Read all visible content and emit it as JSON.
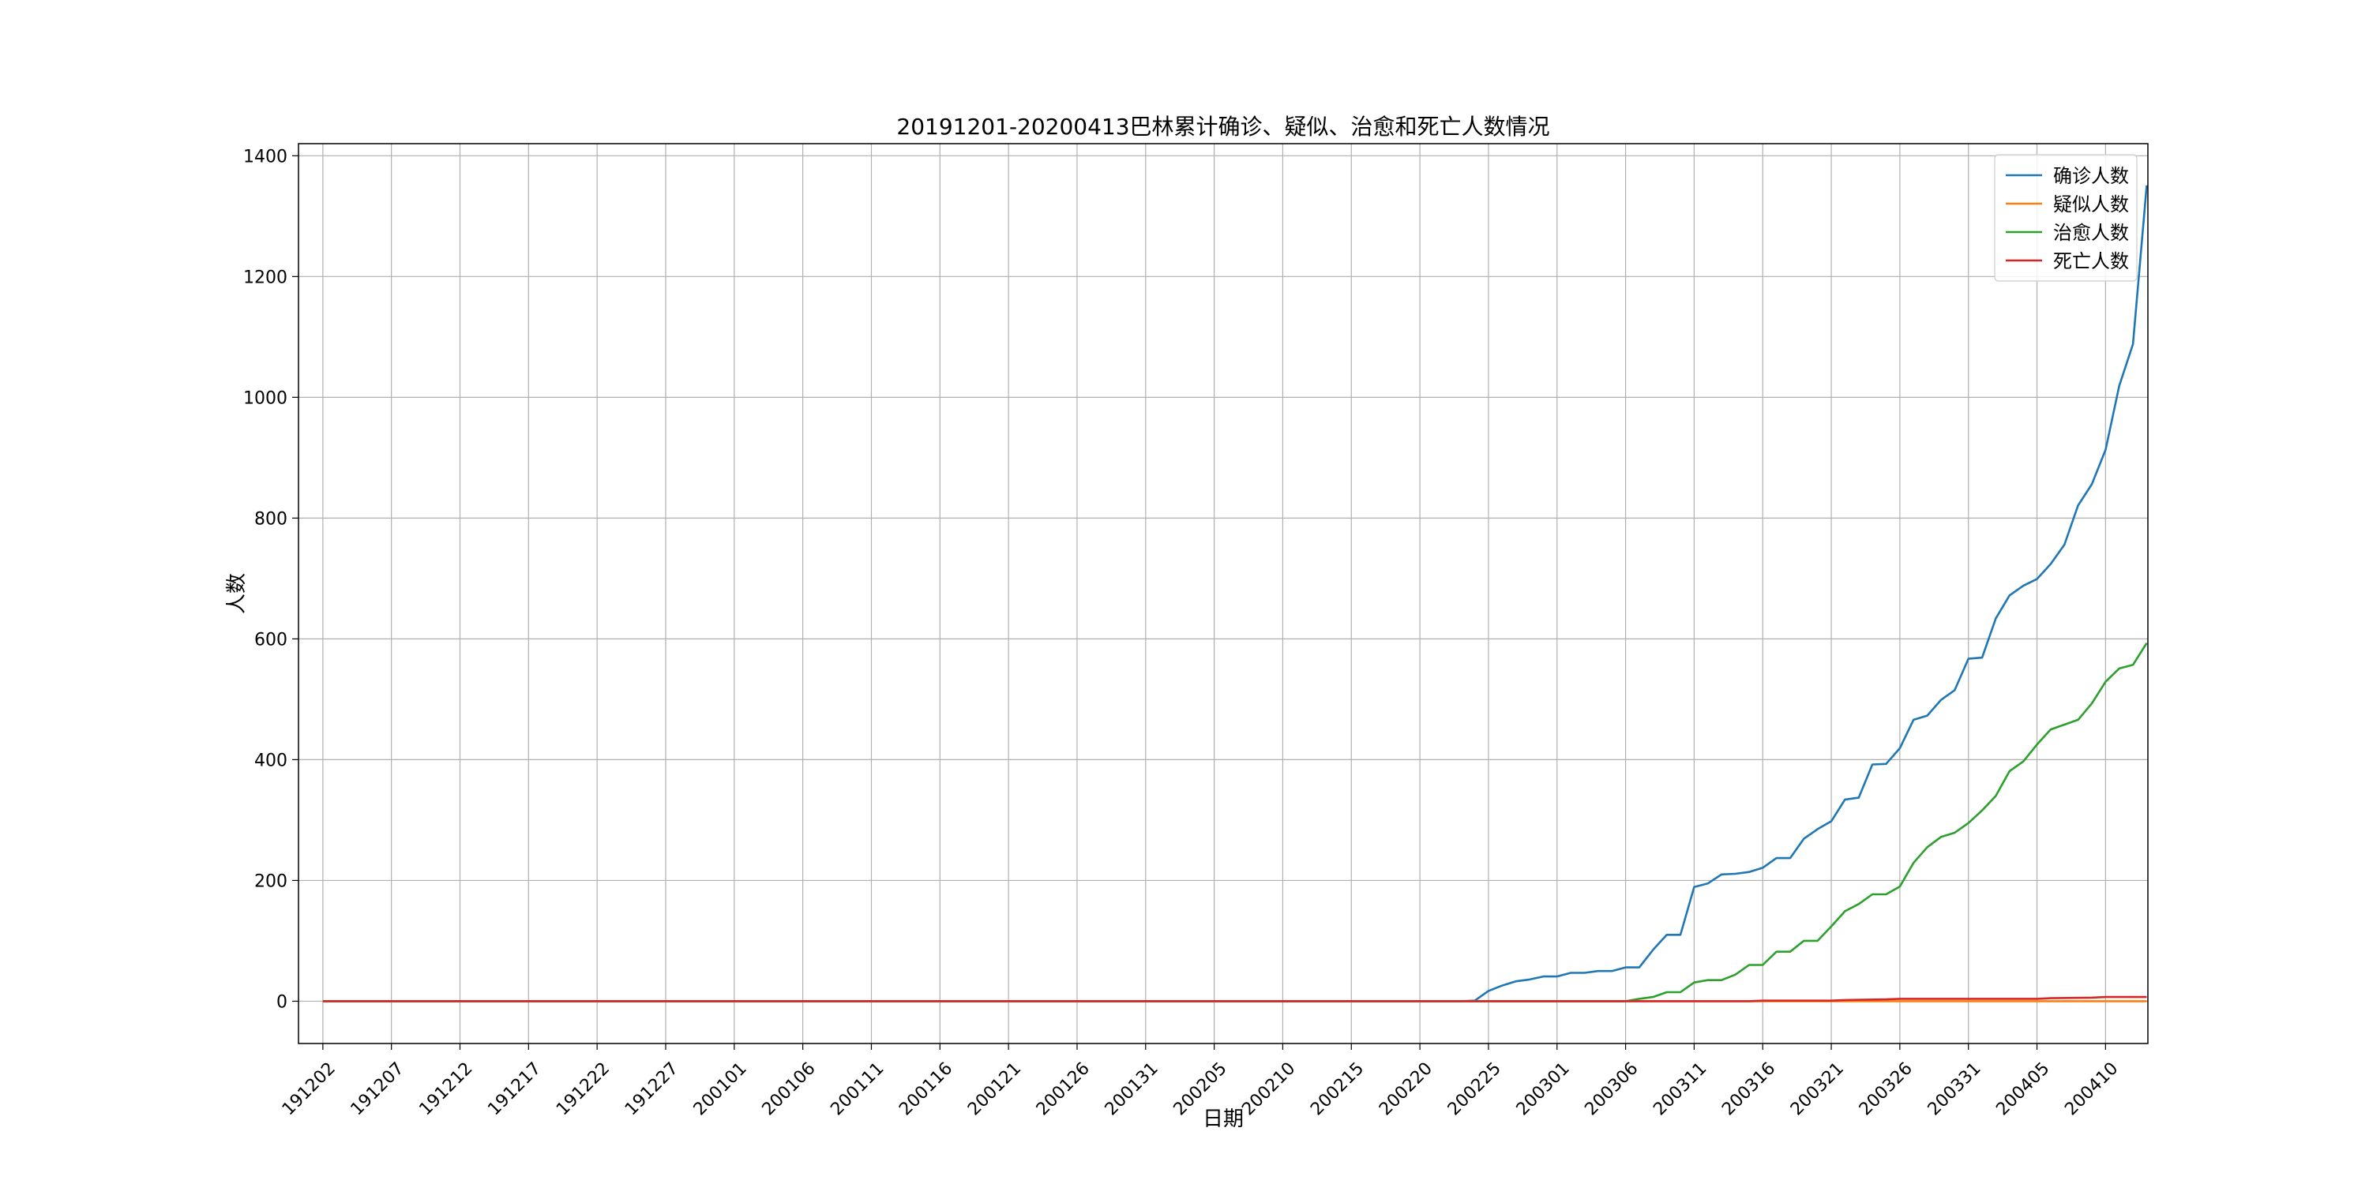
{
  "chart_data": {
    "type": "line",
    "title": "20191201-20200413巴林累计确诊、疑似、治愈和死亡人数情况",
    "xlabel": "日期",
    "ylabel": "人数",
    "start_date": "2019-12-02",
    "end_date": "2020-04-13",
    "x_ticks": [
      "191202",
      "191207",
      "191212",
      "191217",
      "191222",
      "191227",
      "200101",
      "200106",
      "200111",
      "200116",
      "200121",
      "200126",
      "200131",
      "200205",
      "200210",
      "200215",
      "200220",
      "200225",
      "200301",
      "200306",
      "200311",
      "200316",
      "200321",
      "200326",
      "200331",
      "200405",
      "200410"
    ],
    "y_ticks": [
      "0",
      "200",
      "400",
      "600",
      "800",
      "1000",
      "1200",
      "1400"
    ],
    "ylim": [
      -70,
      1420
    ],
    "grid": true,
    "legend_position": "top-right",
    "series": [
      {
        "name": "确诊人数",
        "color": "#1f77b4",
        "points": [
          [
            "2019-12-02",
            0
          ],
          [
            "2020-02-23",
            0
          ],
          [
            "2020-02-24",
            1
          ],
          [
            "2020-02-25",
            17
          ],
          [
            "2020-02-26",
            26
          ],
          [
            "2020-02-27",
            33
          ],
          [
            "2020-02-28",
            36
          ],
          [
            "2020-02-29",
            41
          ],
          [
            "2020-03-01",
            41
          ],
          [
            "2020-03-02",
            47
          ],
          [
            "2020-03-03",
            47
          ],
          [
            "2020-03-04",
            50
          ],
          [
            "2020-03-05",
            50
          ],
          [
            "2020-03-06",
            56
          ],
          [
            "2020-03-07",
            56
          ],
          [
            "2020-03-08",
            85
          ],
          [
            "2020-03-09",
            110
          ],
          [
            "2020-03-10",
            110
          ],
          [
            "2020-03-11",
            189
          ],
          [
            "2020-03-12",
            195
          ],
          [
            "2020-03-13",
            210
          ],
          [
            "2020-03-14",
            211
          ],
          [
            "2020-03-15",
            214
          ],
          [
            "2020-03-16",
            221
          ],
          [
            "2020-03-17",
            237
          ],
          [
            "2020-03-18",
            237
          ],
          [
            "2020-03-19",
            269
          ],
          [
            "2020-03-20",
            285
          ],
          [
            "2020-03-21",
            298
          ],
          [
            "2020-03-22",
            334
          ],
          [
            "2020-03-23",
            337
          ],
          [
            "2020-03-24",
            392
          ],
          [
            "2020-03-25",
            393
          ],
          [
            "2020-03-26",
            419
          ],
          [
            "2020-03-27",
            466
          ],
          [
            "2020-03-28",
            473
          ],
          [
            "2020-03-29",
            499
          ],
          [
            "2020-03-30",
            515
          ],
          [
            "2020-03-31",
            567
          ],
          [
            "2020-04-01",
            569
          ],
          [
            "2020-04-02",
            634
          ],
          [
            "2020-04-03",
            672
          ],
          [
            "2020-04-04",
            688
          ],
          [
            "2020-04-05",
            699
          ],
          [
            "2020-04-06",
            724
          ],
          [
            "2020-04-07",
            756
          ],
          [
            "2020-04-08",
            821
          ],
          [
            "2020-04-09",
            856
          ],
          [
            "2020-04-10",
            913
          ],
          [
            "2020-04-11",
            1019
          ],
          [
            "2020-04-12",
            1088
          ],
          [
            "2020-04-13",
            1351
          ]
        ]
      },
      {
        "name": "疑似人数",
        "color": "#ff7f0e",
        "points": [
          [
            "2019-12-02",
            0
          ],
          [
            "2020-04-13",
            0
          ]
        ]
      },
      {
        "name": "治愈人数",
        "color": "#2ca02c",
        "points": [
          [
            "2019-12-02",
            0
          ],
          [
            "2020-03-06",
            0
          ],
          [
            "2020-03-07",
            4
          ],
          [
            "2020-03-08",
            7
          ],
          [
            "2020-03-09",
            15
          ],
          [
            "2020-03-10",
            15
          ],
          [
            "2020-03-11",
            31
          ],
          [
            "2020-03-12",
            35
          ],
          [
            "2020-03-13",
            35
          ],
          [
            "2020-03-14",
            44
          ],
          [
            "2020-03-15",
            60
          ],
          [
            "2020-03-16",
            60
          ],
          [
            "2020-03-17",
            82
          ],
          [
            "2020-03-18",
            82
          ],
          [
            "2020-03-19",
            100
          ],
          [
            "2020-03-20",
            100
          ],
          [
            "2020-03-21",
            124
          ],
          [
            "2020-03-22",
            149
          ],
          [
            "2020-03-23",
            161
          ],
          [
            "2020-03-24",
            177
          ],
          [
            "2020-03-25",
            177
          ],
          [
            "2020-03-26",
            190
          ],
          [
            "2020-03-27",
            229
          ],
          [
            "2020-03-28",
            255
          ],
          [
            "2020-03-29",
            272
          ],
          [
            "2020-03-30",
            279
          ],
          [
            "2020-03-31",
            295
          ],
          [
            "2020-04-01",
            316
          ],
          [
            "2020-04-02",
            340
          ],
          [
            "2020-04-03",
            381
          ],
          [
            "2020-04-04",
            397
          ],
          [
            "2020-04-05",
            425
          ],
          [
            "2020-04-06",
            450
          ],
          [
            "2020-04-07",
            458
          ],
          [
            "2020-04-08",
            466
          ],
          [
            "2020-04-09",
            493
          ],
          [
            "2020-04-10",
            529
          ],
          [
            "2020-04-11",
            551
          ],
          [
            "2020-04-12",
            557
          ],
          [
            "2020-04-13",
            593
          ]
        ]
      },
      {
        "name": "死亡人数",
        "color": "#d62728",
        "points": [
          [
            "2019-12-02",
            0
          ],
          [
            "2020-03-15",
            0
          ],
          [
            "2020-03-16",
            1
          ],
          [
            "2020-03-21",
            1
          ],
          [
            "2020-03-22",
            2
          ],
          [
            "2020-03-25",
            3
          ],
          [
            "2020-03-26",
            4
          ],
          [
            "2020-04-05",
            4
          ],
          [
            "2020-04-06",
            5
          ],
          [
            "2020-04-09",
            6
          ],
          [
            "2020-04-10",
            7
          ],
          [
            "2020-04-13",
            7
          ]
        ]
      }
    ]
  }
}
